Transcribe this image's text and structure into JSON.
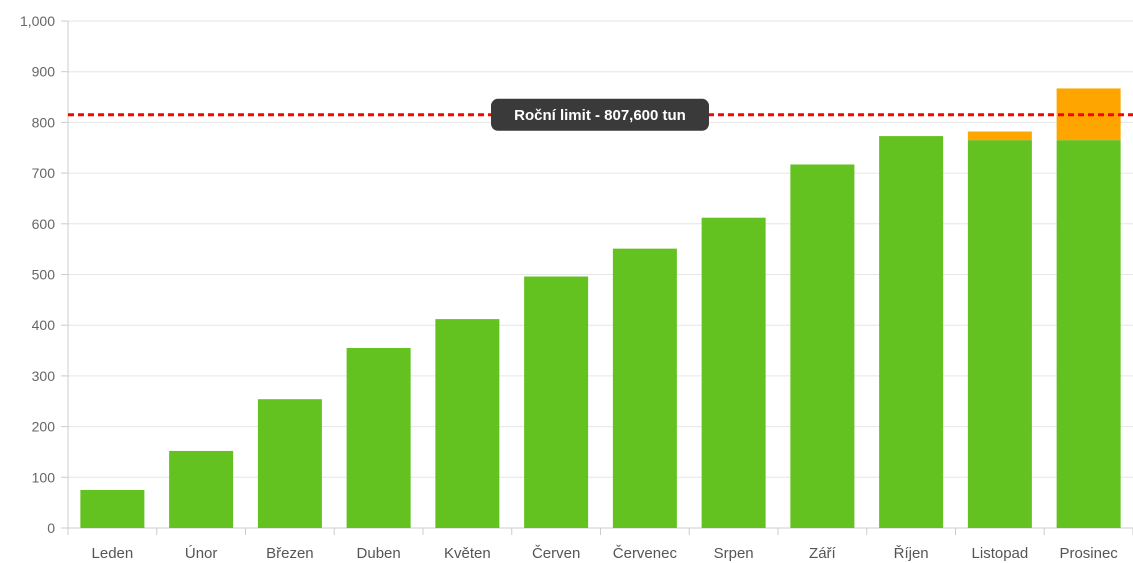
{
  "chart_data": {
    "type": "bar",
    "stacked": true,
    "categories": [
      "Leden",
      "Únor",
      "Březen",
      "Duben",
      "Květen",
      "Červen",
      "Červenec",
      "Srpen",
      "Září",
      "Říjen",
      "Listopad",
      "Prosinec"
    ],
    "series": [
      {
        "color": "#63c120",
        "values": [
          75,
          152,
          254,
          355,
          412,
          496,
          551,
          612,
          717,
          773,
          765,
          765
        ]
      },
      {
        "color": "#ffa500",
        "values": [
          0,
          0,
          0,
          0,
          0,
          0,
          0,
          0,
          0,
          0,
          17,
          102
        ]
      }
    ],
    "ylim": [
      0,
      1000
    ],
    "yticks": [
      "0",
      "100",
      "200",
      "300",
      "400",
      "500",
      "600",
      "700",
      "800",
      "900",
      "1,000"
    ],
    "grid": true,
    "annotations": [
      {
        "type": "hline",
        "value": 815,
        "color": "#ff0000",
        "label": "Roční limit - 807,600 tun"
      }
    ]
  }
}
